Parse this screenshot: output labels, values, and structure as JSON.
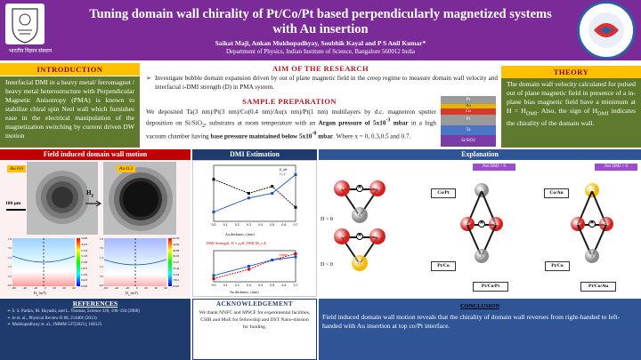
{
  "header": {
    "title": "Tuning domain wall chirality of Pt/Co/Pt based perpendicularly magnetized systems with Au insertion",
    "authors": "Saikat Maji, Ankan Mukhopadhyay, Soubhik Kayal and P S Anil Kumar*",
    "affiliation": "Department of Physics, Indian Institute of Science, Bangalore 560012 India",
    "logo_left_text": "भारतीय विज्ञान संस्थान",
    "colors": {
      "header": "#7a2b98",
      "band": "#ffc000",
      "green": "#5f7a2f",
      "red": "#c00000",
      "navy": "#1f3b6e"
    }
  },
  "introduction": {
    "title": "INTRODUCTION",
    "text": "Interfacial DMI in a heavy metal/ ferromagnet / heavy metal heterostructure with Perpendicular Magnetic Anisotropy (PMA) is known to stabilize chiral spin Neel wall which furnishes ease in the electrical manipulation of the magnetization switching by current driven DW motion"
  },
  "aim": {
    "title": "AIM OF THE RESEARCH",
    "text": "Investigate bubble domain expansion driven by out of plane magnetic field in the creep regime to measure domain wall velocity and interfacial i-DMI strength (D) in PMA system."
  },
  "sample": {
    "title": "SAMPLE PREPARATION",
    "text_a": "We deposited Ta(3 nm)/Pt(3 nm)/Co(0.4 nm)/Au(x nm)/Pt(1 nm) multilayers by d.c. magnetron sputter deposition on Si/SiO",
    "text_b": ", substrates at room temperature with an ",
    "bold_a": "Argon pressure of 5x10",
    "bold_b": " mbar",
    "text_c": " in a high vacuum chamber having ",
    "bold_c": "base pressure maintained below 5x10",
    "bold_d": " mbar",
    "text_d": ". Where x = 0, 0.3,0.5 and 0.7.",
    "sub": "2",
    "sup": "-3",
    "sup2": "-8",
    "layers": [
      "Pt",
      "Au",
      "Co",
      "Pt",
      "Ta",
      "Si/SiO2"
    ]
  },
  "theory": {
    "title": "THEORY",
    "text": "The domain wall velocity calculated for pulsed out of plane magnetic field in presence of a in-plane bias magnetic field have a minimum at H = H",
    "sub1": "DMI",
    "text2": ". Also, the sign of H",
    "sub2": "DMI",
    "text3": " indicates the chirality of the domain wall."
  },
  "motion": {
    "title": "Field induced domain wall motion",
    "label_left": "Au 0.0",
    "label_right": "Au 0.3",
    "scale": "100 μm",
    "hz": "H",
    "hz_sub": "z",
    "xlabel": "H",
    "xlabel_sub": "x",
    "xlabel_unit": " (mT)",
    "ylabel": "H",
    "ylabel_sub": "z",
    "ylabel_unit": " (mT)",
    "x_ticks": [
      "-60",
      "-40",
      "-20",
      "0",
      "20",
      "40",
      "60"
    ],
    "y_ticks": [
      "7.8",
      "7.6",
      "7.4",
      "7.2",
      "7.0",
      "6.8"
    ],
    "cb_left": [
      "5.000",
      "4.375",
      "3.750",
      "3.125",
      "2.500",
      "1.875",
      "1.250",
      "0.625",
      "0.000"
    ],
    "cb_right": [
      "62.50",
      "54.69",
      "46.88",
      "39.06",
      "31.25",
      "23.44",
      "15.62",
      "7.812",
      "0.000"
    ]
  },
  "dmi": {
    "title": "DMI Estimation",
    "top_xlabel": "Au thickness, t (nm)",
    "top_ylabel_left": "Anisotropy strength, K",
    "top_ylabel_right": "Saturation field, H",
    "top_legend": [
      "K_eff",
      "H_k"
    ],
    "bottom_caption": "DMI Strength, D = μ₀H_DMI M_s Δ",
    "bottom_xlabel": "Au thickness, t (nm)",
    "bottom_ylabel_left": "H_DMI (mT)",
    "bottom_ylabel_right": "D (mJ/m²)",
    "bottom_legend": [
      "Hdmi",
      "D"
    ],
    "x_ticks": [
      "0.0",
      "0.1",
      "0.2",
      "0.3",
      "0.4",
      "0.5",
      "0.6",
      "0.7"
    ],
    "chart_data": [
      {
        "type": "line",
        "x": [
          0,
          0.3,
          0.5,
          0.7
        ],
        "series": [
          {
            "name": "K_eff",
            "values": [
              0.18,
              0.16,
              0.17,
              0.14
            ]
          },
          {
            "name": "H_k",
            "values": [
              0.9,
              1.05,
              1.1,
              1.3
            ]
          }
        ],
        "xlabel": "Au thickness, t (nm)"
      },
      {
        "type": "line",
        "x": [
          0,
          0.3,
          0.5,
          0.7
        ],
        "series": [
          {
            "name": "Hdmi",
            "values": [
              -20,
              10,
              40,
              60
            ]
          },
          {
            "name": "D",
            "values": [
              0.3,
              0.45,
              0.55,
              0.6
            ]
          }
        ],
        "xlabel": "Au thickness, t (nm)"
      }
    ]
  },
  "explanation": {
    "title": "Explanation",
    "net_left": "Net DMI < 0",
    "net_right": "Net DMI > 0",
    "d_pos": "D > 0",
    "d_neg": "D < 0",
    "box_copt": "Co/Pt",
    "box_coau": "Co/Au",
    "box_ptco": "Pt/Co",
    "box_copt_stack": "Pt/Co/Pt",
    "box_coau_stack": "Pt/Co/Au",
    "atoms": {
      "co": "Co",
      "pt": "Pt",
      "au": "Au"
    }
  },
  "references": {
    "title": "REFERENCES",
    "items": [
      "S. S. Parkin, M. Hayashi, and L. Thomas, Science 320, 190–194 (2008)",
      "Je et. al., Physical Review B 88, 214401 (2013)",
      "Mukhopadhyay et. al., JMMM 537(2021), 168125"
    ]
  },
  "acknowledgement": {
    "title": "ACKNOWLEDGEMENT",
    "text": "We thank NNFC and MNCF for experimental facilities, CSIR and MoE for fellowship and DST Nano-mission for funding."
  },
  "conclusion": {
    "title": "CONCLUSION",
    "text": "Field induced domain wall motion reveals that the chirality of domain wall reverses from right-handed to left-handed with Au insertion at top co/Pt interface."
  }
}
